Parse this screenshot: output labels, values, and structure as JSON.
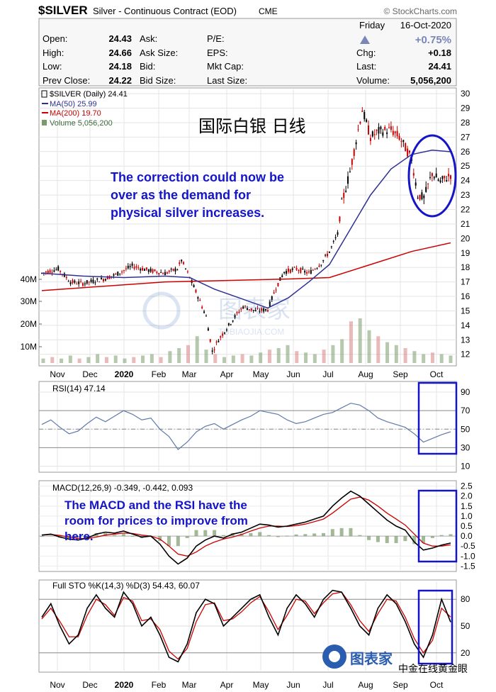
{
  "header": {
    "symbol": "$SILVER",
    "name": "Silver - Continuous Contract (EOD)",
    "exchange": "CME",
    "source": "© StockCharts.com",
    "day": "Friday",
    "date": "16-Oct-2020",
    "pct_change": "+0.75%"
  },
  "quote": {
    "open_label": "Open:",
    "open": "24.43",
    "high_label": "High:",
    "high": "24.66",
    "low_label": "Low:",
    "low": "24.18",
    "prev_label": "Prev Close:",
    "prev": "24.22",
    "ask_label": "Ask:",
    "ask_size_label": "Ask Size:",
    "bid_label": "Bid:",
    "bid_size_label": "Bid Size:",
    "pe_label": "P/E:",
    "eps_label": "EPS:",
    "mktcap_label": "Mkt Cap:",
    "lastsize_label": "Last Size:",
    "chg_label": "Chg:",
    "chg": "+0.18",
    "last_label": "Last:",
    "last": "24.41",
    "volume_label": "Volume:",
    "volume": "5,056,200"
  },
  "legend": {
    "price": "$SILVER (Daily) 24.41",
    "ma50": "MA(50) 25.99",
    "ma200": "MA(200) 19.70",
    "volume": "Volume 5,056,200"
  },
  "annotations": {
    "chinese_title": "国际白银 日线",
    "correction": [
      "The correction could now be",
      "over as the demand for",
      "physical silver increases."
    ],
    "macd_note": [
      "The MACD and the RSI have the",
      "room for prices to improve from",
      "here."
    ]
  },
  "watermark": {
    "text": "图表家",
    "url": "TUBIAOJIA.COM",
    "credit": "中金在线黄金眼"
  },
  "colors": {
    "price": "#000000",
    "down": "#cc0000",
    "ma50": "#2e3192",
    "ma200": "#cc0000",
    "volume_up": "#7a9a6a",
    "volume_down": "#d98080",
    "rsi": "#5f79a9",
    "highlight": "#1515c8",
    "annotation": "#1515c8"
  },
  "chart_data": [
    {
      "type": "candlestick",
      "title": "$SILVER (Daily) 24.41",
      "x_labels": [
        "Nov",
        "Dec",
        "2020",
        "Feb",
        "Mar",
        "Apr",
        "May",
        "Jun",
        "Jul",
        "Aug",
        "Sep",
        "Oct"
      ],
      "y_ticks": [
        12,
        13,
        14,
        15,
        16,
        17,
        18,
        19,
        20,
        21,
        22,
        23,
        24,
        25,
        26,
        27,
        28,
        29,
        30
      ],
      "ylim": [
        11.3,
        30.3
      ],
      "volume_ticks": [
        "10M",
        "20M",
        "30M",
        "40M"
      ],
      "price_path": [
        [
          0,
          17.6
        ],
        [
          8,
          17.9
        ],
        [
          14,
          17.0
        ],
        [
          20,
          16.9
        ],
        [
          30,
          17.2
        ],
        [
          36,
          17.5
        ],
        [
          44,
          18.1
        ],
        [
          52,
          17.8
        ],
        [
          60,
          17.6
        ],
        [
          66,
          17.9
        ],
        [
          68,
          18.5
        ],
        [
          72,
          17.3
        ],
        [
          76,
          16.0
        ],
        [
          80,
          14.6
        ],
        [
          83,
          12.2
        ],
        [
          86,
          13.0
        ],
        [
          90,
          13.8
        ],
        [
          94,
          14.6
        ],
        [
          98,
          15.3
        ],
        [
          104,
          15.0
        ],
        [
          110,
          15.1
        ],
        [
          114,
          16.6
        ],
        [
          118,
          17.7
        ],
        [
          124,
          17.9
        ],
        [
          130,
          17.6
        ],
        [
          136,
          18.3
        ],
        [
          140,
          19.1
        ],
        [
          144,
          20.3
        ],
        [
          146,
          22.4
        ],
        [
          150,
          24.6
        ],
        [
          154,
          27.5
        ],
        [
          156,
          28.9
        ],
        [
          160,
          27.0
        ],
        [
          164,
          27.4
        ],
        [
          170,
          27.5
        ],
        [
          174,
          27.0
        ],
        [
          180,
          25.5
        ],
        [
          183,
          23.0
        ],
        [
          186,
          22.8
        ],
        [
          190,
          24.5
        ],
        [
          194,
          23.9
        ],
        [
          198,
          24.3
        ],
        [
          199,
          24.41
        ]
      ],
      "ma50": [
        [
          0,
          17.6
        ],
        [
          20,
          17.4
        ],
        [
          40,
          17.3
        ],
        [
          60,
          17.4
        ],
        [
          72,
          17.3
        ],
        [
          84,
          16.5
        ],
        [
          96,
          15.9
        ],
        [
          110,
          15.2
        ],
        [
          120,
          15.9
        ],
        [
          130,
          17.0
        ],
        [
          140,
          18.2
        ],
        [
          150,
          20.6
        ],
        [
          160,
          23.0
        ],
        [
          170,
          24.8
        ],
        [
          180,
          25.8
        ],
        [
          190,
          26.1
        ],
        [
          199,
          25.99
        ]
      ],
      "ma200": [
        [
          0,
          16.4
        ],
        [
          30,
          16.7
        ],
        [
          60,
          17.0
        ],
        [
          90,
          17.1
        ],
        [
          120,
          17.2
        ],
        [
          140,
          17.3
        ],
        [
          160,
          18.2
        ],
        [
          180,
          19.1
        ],
        [
          199,
          19.7
        ]
      ],
      "volume": [
        3,
        4,
        3,
        5,
        3,
        4,
        6,
        4,
        5,
        3,
        4,
        5,
        6,
        4,
        8,
        10,
        12,
        18,
        9,
        6,
        4,
        5,
        6,
        5,
        7,
        9,
        10,
        12,
        8,
        7,
        6,
        9,
        12,
        16,
        28,
        30,
        22,
        18,
        14,
        12,
        10,
        8,
        6,
        7,
        6,
        5
      ]
    },
    {
      "type": "line",
      "title": "RSI(14) 47.14",
      "series": [
        {
          "name": "RSI(14)",
          "values": [
            55,
            60,
            52,
            45,
            48,
            56,
            63,
            58,
            64,
            70,
            66,
            60,
            62,
            50,
            42,
            28,
            36,
            47,
            53,
            56,
            50,
            55,
            60,
            64,
            70,
            68,
            66,
            60,
            56,
            58,
            62,
            66,
            68,
            73,
            78,
            76,
            70,
            62,
            58,
            55,
            52,
            45,
            36,
            40,
            44,
            47.14
          ]
        }
      ],
      "y_ticks": [
        10,
        30,
        50,
        70,
        90
      ],
      "ylim": [
        5,
        100
      ]
    },
    {
      "type": "line",
      "title": "MACD(12,26,9) -0.349, -0.442, 0.093",
      "series": [
        {
          "name": "MACD",
          "values": [
            0.05,
            0.1,
            -0.05,
            -0.15,
            -0.2,
            -0.1,
            0.1,
            0.2,
            0.15,
            0.25,
            0.1,
            -0.05,
            0.0,
            -0.4,
            -1.0,
            -1.4,
            -1.1,
            -0.5,
            -0.2,
            0.0,
            -0.1,
            0.1,
            0.2,
            0.4,
            0.6,
            0.55,
            0.45,
            0.5,
            0.6,
            0.7,
            0.85,
            1.0,
            1.5,
            1.9,
            2.25,
            2.0,
            1.6,
            1.2,
            0.8,
            0.5,
            0.3,
            -0.3,
            -0.7,
            -0.6,
            -0.45,
            -0.349
          ]
        },
        {
          "name": "Signal",
          "values": [
            0.05,
            0.08,
            0.03,
            -0.05,
            -0.12,
            -0.12,
            -0.05,
            0.05,
            0.1,
            0.15,
            0.13,
            0.05,
            0.0,
            -0.15,
            -0.5,
            -0.9,
            -1.0,
            -0.8,
            -0.5,
            -0.3,
            -0.15,
            -0.05,
            0.08,
            0.25,
            0.4,
            0.5,
            0.5,
            0.48,
            0.52,
            0.6,
            0.72,
            0.85,
            1.15,
            1.5,
            1.85,
            1.95,
            1.8,
            1.5,
            1.15,
            0.85,
            0.55,
            0.1,
            -0.35,
            -0.5,
            -0.5,
            -0.442
          ]
        }
      ],
      "histogram_last": 0.093,
      "y_ticks": [
        -1.5,
        -1.0,
        -0.5,
        0.0,
        0.5,
        1.0,
        1.5,
        2.0,
        2.5
      ],
      "ylim": [
        -1.7,
        2.7
      ]
    },
    {
      "type": "line",
      "title": "Full STO %K(14,3) %D(3) 54.43, 60.07",
      "series": [
        {
          "name": "%K",
          "values": [
            60,
            75,
            50,
            30,
            40,
            70,
            85,
            70,
            60,
            88,
            75,
            50,
            60,
            40,
            15,
            10,
            30,
            65,
            80,
            75,
            50,
            60,
            70,
            80,
            85,
            60,
            40,
            70,
            85,
            75,
            60,
            80,
            90,
            88,
            70,
            50,
            40,
            70,
            85,
            75,
            55,
            30,
            15,
            40,
            80,
            54.43
          ]
        },
        {
          "name": "%D",
          "values": [
            58,
            70,
            55,
            38,
            38,
            62,
            80,
            74,
            62,
            82,
            78,
            56,
            58,
            46,
            22,
            13,
            25,
            55,
            74,
            76,
            56,
            58,
            66,
            76,
            83,
            66,
            46,
            62,
            80,
            78,
            64,
            76,
            86,
            88,
            74,
            56,
            44,
            64,
            80,
            78,
            60,
            36,
            20,
            34,
            70,
            60.07
          ]
        }
      ],
      "y_ticks": [
        20,
        50,
        80
      ],
      "ylim": [
        0,
        100
      ]
    }
  ]
}
